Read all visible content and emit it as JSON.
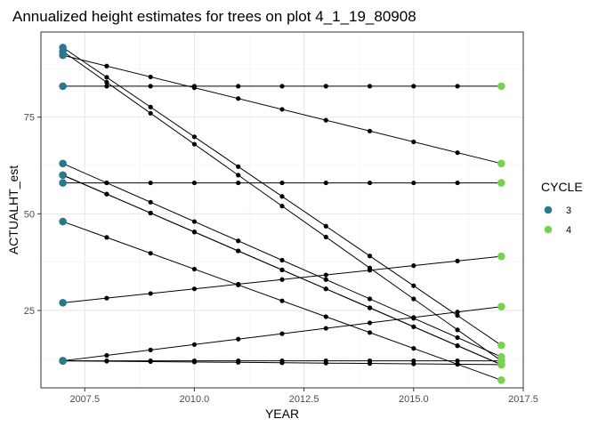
{
  "chart_data": {
    "type": "scatter",
    "title": "Annualized height estimates for trees on plot 4_1_19_80908",
    "xlabel": "YEAR",
    "ylabel": "ACTUALHT_est",
    "xlim": [
      2006.5,
      2017.5
    ],
    "ylim": [
      5,
      97
    ],
    "x_ticks": [
      2007.5,
      2010,
      2012.5,
      2015,
      2017.5
    ],
    "x_tick_labels": [
      "2007.5",
      "2010.0",
      "2012.5",
      "2015.0",
      "2017.5"
    ],
    "y_ticks": [
      25,
      50,
      75
    ],
    "y_tick_labels": [
      "25",
      "50",
      "75"
    ],
    "grid": true,
    "legend": {
      "title": "CYCLE",
      "placement": "right",
      "entries": [
        {
          "label": "3",
          "color": "#2a788e"
        },
        {
          "label": "4",
          "color": "#7ad151"
        }
      ]
    },
    "annual_point_color": "#000000",
    "years": [
      2007,
      2008,
      2009,
      2010,
      2011,
      2012,
      2013,
      2014,
      2015,
      2016,
      2017
    ],
    "trees": [
      {
        "start": 83,
        "end": 83
      },
      {
        "start": 91,
        "end": 63
      },
      {
        "start": 93,
        "end": 16
      },
      {
        "start": 92,
        "end": 12
      },
      {
        "start": 58,
        "end": 58
      },
      {
        "start": 63,
        "end": 13
      },
      {
        "start": 60,
        "end": 11
      },
      {
        "start": 60,
        "end": 11
      },
      {
        "start": 48,
        "end": 7
      },
      {
        "start": 27,
        "end": 39
      },
      {
        "start": 12,
        "end": 26
      },
      {
        "start": 12,
        "end": 12
      },
      {
        "start": 12,
        "end": 11
      }
    ]
  }
}
